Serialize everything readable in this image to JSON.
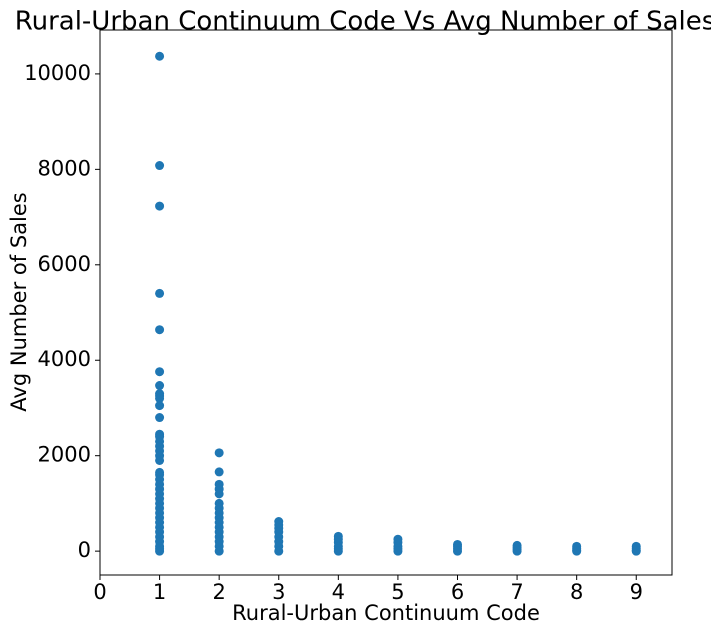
{
  "chart_data": {
    "type": "scatter",
    "title": "Rural-Urban Continuum Code Vs Avg Number of Sales",
    "x_label": "Rural-Urban Continuum Code",
    "y_label": "Avg Number of Sales",
    "color": "#1f77b4",
    "x": [
      1,
      1,
      1,
      1,
      1,
      1,
      1,
      1,
      1,
      1,
      1,
      1,
      1,
      1,
      1,
      1,
      1,
      1,
      1,
      1,
      1,
      1,
      1,
      1,
      1,
      1,
      1,
      1,
      1,
      1,
      1,
      1,
      1,
      1,
      1,
      1,
      1,
      1,
      2,
      2,
      2,
      2,
      2,
      2,
      2,
      2,
      2,
      2,
      2,
      2,
      2,
      2,
      2,
      2,
      3,
      3,
      3,
      3,
      3,
      3,
      3,
      3,
      4,
      4,
      4,
      4,
      4,
      4,
      5,
      5,
      5,
      5,
      5,
      6,
      6,
      6,
      6,
      7,
      7,
      7,
      7,
      8,
      8,
      8,
      8,
      9,
      9,
      9,
      9
    ],
    "values": [
      10370,
      8080,
      7230,
      5400,
      4640,
      3760,
      3470,
      3300,
      3250,
      3200,
      3050,
      2800,
      2450,
      2400,
      2300,
      2200,
      2100,
      2000,
      1900,
      1650,
      1600,
      1500,
      1400,
      1300,
      1200,
      1100,
      1000,
      900,
      800,
      700,
      600,
      500,
      400,
      300,
      200,
      100,
      50,
      0,
      2060,
      1660,
      1400,
      1300,
      1200,
      1000,
      900,
      800,
      700,
      600,
      500,
      400,
      300,
      200,
      100,
      0,
      620,
      550,
      480,
      400,
      300,
      200,
      100,
      0,
      310,
      250,
      180,
      100,
      50,
      0,
      250,
      180,
      100,
      50,
      0,
      140,
      100,
      50,
      0,
      120,
      80,
      40,
      0,
      100,
      60,
      20,
      0,
      100,
      60,
      20,
      0
    ],
    "xlim": [
      0,
      9.6
    ],
    "xticks": [
      0,
      1,
      2,
      3,
      4,
      5,
      6,
      7,
      8,
      9
    ],
    "ylim": [
      -500,
      10920
    ],
    "yticks": [
      0,
      2000,
      4000,
      6000,
      8000,
      10000
    ]
  }
}
